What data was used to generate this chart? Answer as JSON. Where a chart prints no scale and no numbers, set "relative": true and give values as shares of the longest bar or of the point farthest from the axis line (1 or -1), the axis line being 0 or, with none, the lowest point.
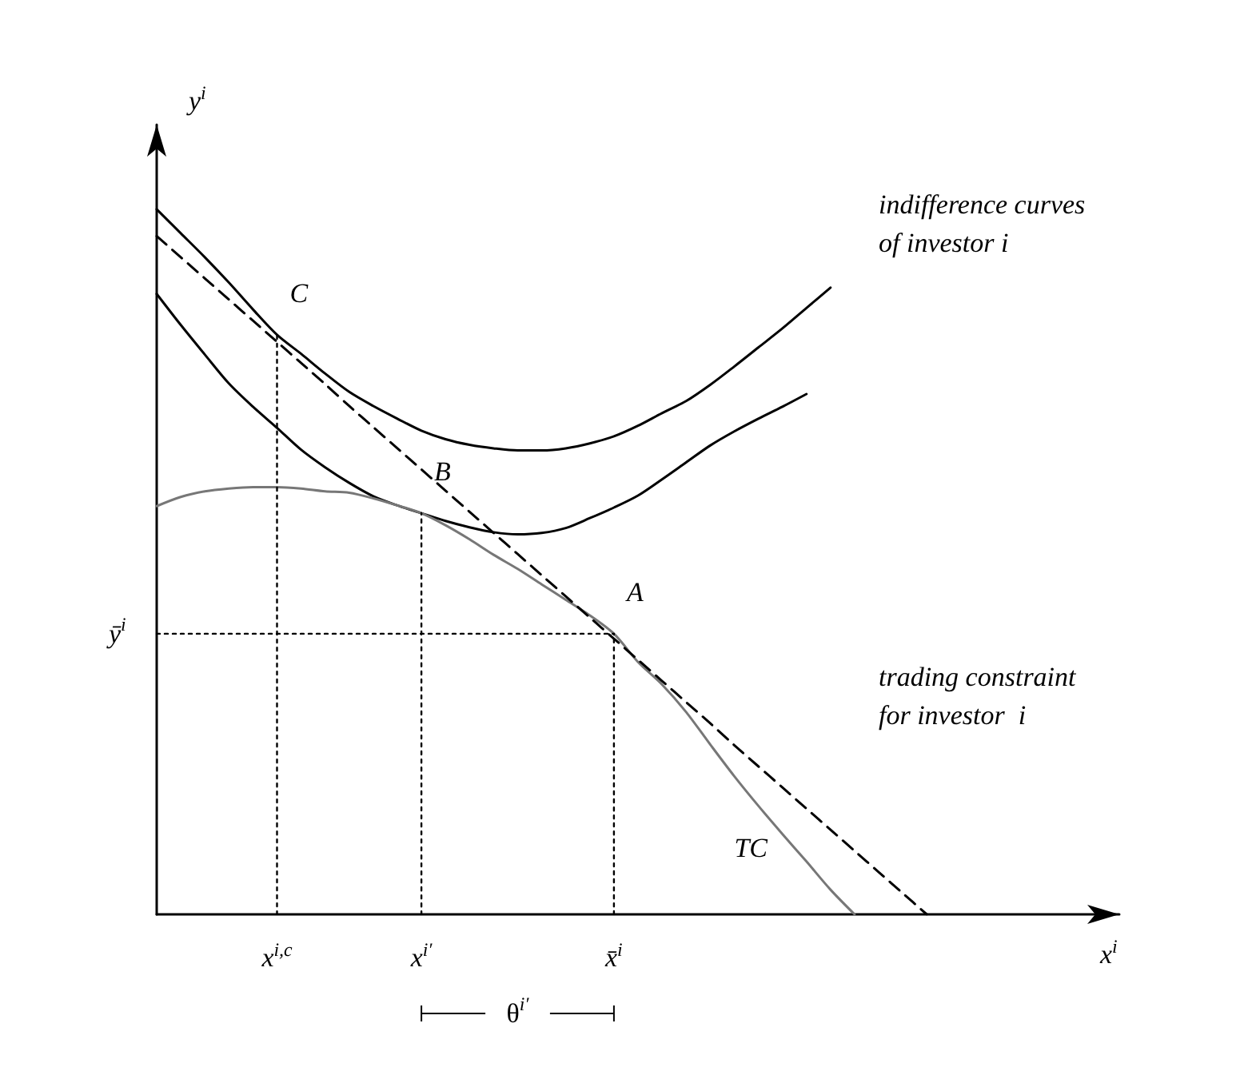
{
  "chart_data": {
    "type": "line",
    "relative": true,
    "xlabel": "x$^{i}$",
    "ylabel": "y$^{i}$",
    "categories": [
      null,
      null,
      null,
      null,
      null,
      "x$^{i,c}$",
      null,
      null,
      null,
      null,
      null,
      "x$^{i′}$",
      null,
      null,
      null,
      null,
      null,
      null,
      null,
      "x̄$^{i}$",
      null,
      null,
      null,
      null,
      null,
      null,
      null,
      null,
      null,
      null,
      null,
      null,
      null,
      null,
      null,
      null,
      null,
      null,
      null,
      null,
      null
    ],
    "grid": false,
    "marker": "none",
    "line_style": "solid",
    "series": [
      {
        "color": "#000000",
        "values": [
          1.0,
          0.966,
          0.932,
          0.896,
          0.858,
          0.822,
          0.795,
          0.767,
          0.741,
          0.721,
          0.703,
          0.686,
          0.674,
          0.666,
          0.661,
          0.658,
          0.658,
          0.661,
          0.668,
          0.678,
          0.693,
          0.711,
          0.728,
          0.751,
          0.777,
          0.804,
          0.831,
          0.86,
          0.889,
          null,
          null,
          null,
          null,
          null,
          null,
          null,
          null,
          null,
          null,
          null,
          null
        ]
      },
      {
        "color": "#000000",
        "values": [
          0.88,
          0.836,
          0.794,
          0.753,
          0.72,
          0.69,
          0.659,
          0.634,
          0.612,
          0.593,
          0.58,
          0.569,
          0.558,
          0.549,
          0.542,
          0.539,
          0.541,
          0.548,
          0.562,
          0.577,
          0.594,
          0.617,
          0.641,
          0.665,
          0.685,
          0.703,
          0.72,
          0.738,
          null,
          null,
          null,
          null,
          null,
          null,
          null,
          null,
          null,
          null,
          null,
          null,
          null
        ]
      },
      {
        "color": "#777777",
        "values": [
          0.579,
          0.592,
          0.6,
          0.604,
          0.606,
          0.606,
          0.604,
          0.6,
          0.598,
          0.59,
          0.58,
          0.569,
          0.552,
          0.532,
          0.51,
          0.49,
          0.468,
          0.446,
          0.424,
          0.398,
          0.358,
          0.326,
          0.287,
          0.241,
          0.196,
          0.154,
          0.114,
          0.075,
          0.035,
          0,
          null,
          null,
          null,
          null,
          null,
          null,
          null,
          null,
          null,
          null,
          null
        ]
      },
      {
        "color": "#000000",
        "line_style": "dashed",
        "values": [
          0.962,
          0.932,
          0.902,
          0.872,
          0.842,
          0.812,
          0.782,
          0.752,
          0.721,
          0.691,
          0.661,
          0.631,
          0.601,
          0.571,
          0.541,
          0.511,
          0.481,
          0.451,
          0.421,
          0.391,
          0.361,
          0.331,
          0.301,
          0.271,
          0.24,
          0.21,
          0.18,
          0.15,
          0.12,
          0.09,
          0.06,
          0.03,
          0,
          null,
          null,
          null,
          null,
          null,
          null,
          null,
          null
        ]
      },
      {
        "color": "#000000",
        "line_style": "dotted",
        "x": [
          "x$^{i,c}$",
          "x$^{i,c}$"
        ],
        "values": [
          0,
          0.822
        ]
      },
      {
        "color": "#000000",
        "line_style": "dotted",
        "x": [
          "x$^{i′}$",
          "x$^{i′}$"
        ],
        "values": [
          0,
          0.569
        ]
      },
      {
        "color": "#000000",
        "line_style": "dotted",
        "x": [
          "x̄$^{i}$",
          "x̄$^{i}$"
        ],
        "values": [
          0,
          0.398
        ]
      },
      {
        "color": "#000000",
        "line_style": "dotted",
        "values": [
          0.398,
          0.398,
          0.398,
          0.398,
          0.398,
          0.398,
          0.398,
          0.398,
          0.398,
          0.398,
          0.398,
          0.398,
          0.398,
          0.398,
          0.398,
          0.398,
          0.398,
          0.398,
          0.398,
          0.398,
          null,
          null,
          null,
          null,
          null,
          null,
          null,
          null,
          null,
          null,
          null,
          null,
          null,
          null,
          null,
          null,
          null,
          null,
          null,
          null,
          null
        ]
      }
    ],
    "annotations": [
      {
        "text": "C",
        "x": "x$^{i,c}$",
        "y": 0.822
      },
      {
        "text": "B",
        "x": "x$^{i′}$",
        "y": 0.569
      },
      {
        "text": "A",
        "x": "x̄$^{i}$",
        "y": 0.398
      },
      "ȳ$^{i}$",
      "TC",
      "indifference curves\nof investor i",
      "trading constraint\nfor investor  i",
      "θ$^{i′}$"
    ]
  }
}
